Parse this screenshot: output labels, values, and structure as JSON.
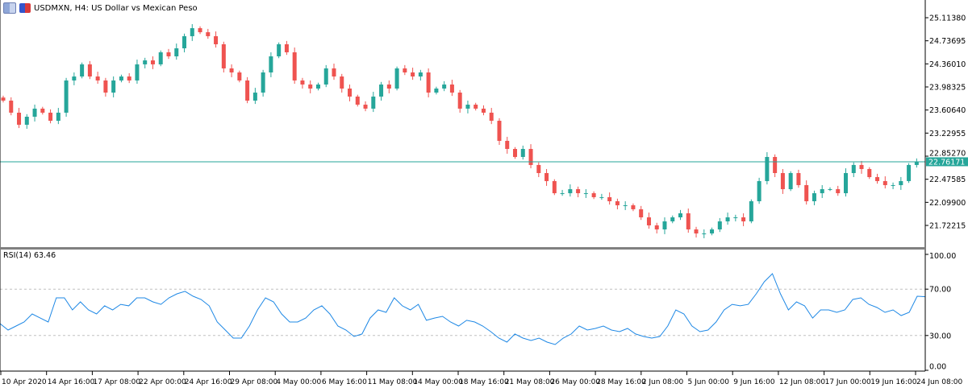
{
  "header": {
    "title": "USDMXN, H4:  US Dollar vs Mexican Peso",
    "icons": [
      "chart-window-icon",
      "chart-type-icon"
    ]
  },
  "colors": {
    "bull": "#26a69a",
    "bear": "#ef5350",
    "price_line": "#26a69a",
    "rsi_line": "#1e88e5",
    "level_line": "#c0c0c0"
  },
  "chart_data": [
    {
      "type": "candlestick",
      "symbol": "USDMXN",
      "timeframe": "H4",
      "ylim": [
        21.6,
        25.28
      ],
      "y_ticks": [
        "25.11380",
        "24.73695",
        "24.36010",
        "23.98325",
        "23.60640",
        "23.22955",
        "22.85270",
        "22.47585",
        "22.09900",
        "21.72215"
      ],
      "current_price": "22.76171",
      "x_ticks": [
        "10 Apr 2020",
        "14 Apr 16:00",
        "17 Apr 08:00",
        "22 Apr 00:00",
        "24 Apr 16:00",
        "29 Apr 08:00",
        "4 May 00:00",
        "6 May 16:00",
        "11 May 08:00",
        "14 May 00:00",
        "18 May 16:00",
        "21 May 08:00",
        "26 May 00:00",
        "28 May 16:00",
        "2 Jun 08:00",
        "5 Jun 00:00",
        "9 Jun 16:00",
        "12 Jun 08:00",
        "17 Jun 00:00",
        "19 Jun 16:00",
        "24 Jun 08:00"
      ],
      "closes": [
        23.76,
        23.563,
        23.366,
        23.497,
        23.629,
        23.563,
        23.431,
        23.563,
        24.089,
        24.154,
        24.352,
        24.154,
        24.089,
        23.891,
        24.089,
        24.154,
        24.089,
        24.352,
        24.417,
        24.352,
        24.549,
        24.483,
        24.614,
        24.812,
        24.943,
        24.877,
        24.812,
        24.68,
        24.286,
        24.22,
        24.089,
        23.76,
        23.891,
        24.22,
        24.483,
        24.68,
        24.549,
        24.089,
        24.023,
        23.957,
        24.023,
        24.286,
        24.154,
        23.957,
        23.826,
        23.694,
        23.629,
        23.826,
        24.023,
        23.957,
        24.286,
        24.22,
        24.154,
        24.22,
        23.891,
        23.957,
        24.023,
        23.891,
        23.629,
        23.694,
        23.629,
        23.563,
        23.431,
        23.103,
        22.971,
        22.84,
        22.971,
        22.709,
        22.577,
        22.446,
        22.248,
        22.248,
        22.314,
        22.248,
        22.248,
        22.183,
        22.183,
        22.117,
        22.051,
        22.051,
        21.986,
        21.854,
        21.723,
        21.657,
        21.788,
        21.854,
        21.92,
        21.657,
        21.591,
        21.591,
        21.657,
        21.788,
        21.854,
        21.854,
        21.788,
        22.117,
        22.446,
        22.84,
        22.577,
        22.314,
        22.577,
        22.38,
        22.117,
        22.248,
        22.314,
        22.314,
        22.248,
        22.577,
        22.709,
        22.643,
        22.511,
        22.446,
        22.38,
        22.38,
        22.446,
        22.709,
        22.762
      ]
    },
    {
      "type": "line",
      "indicator": "RSI(14)",
      "label": "RSI(14) 63.46",
      "ylim": [
        0,
        100
      ],
      "y_ticks": [
        "100.00",
        "70.00",
        "30.00",
        "0.00"
      ],
      "levels": [
        70,
        30
      ],
      "values": [
        40.3,
        34.7,
        38.2,
        41.7,
        48.6,
        45.1,
        41.7,
        62.5,
        62.5,
        52.1,
        59.0,
        52.1,
        48.6,
        55.6,
        52.1,
        56.9,
        55.6,
        62.5,
        62.5,
        59.0,
        56.9,
        62.5,
        66.0,
        68.1,
        63.9,
        61.1,
        55.6,
        41.7,
        34.7,
        27.8,
        27.8,
        38.2,
        52.1,
        62.5,
        59.0,
        48.6,
        41.7,
        41.7,
        45.1,
        52.1,
        55.6,
        48.6,
        38.2,
        34.7,
        29.2,
        31.3,
        45.1,
        52.1,
        50.0,
        62.5,
        55.6,
        52.1,
        56.9,
        43.1,
        45.1,
        46.5,
        41.7,
        38.2,
        43.1,
        41.7,
        38.2,
        33.3,
        27.8,
        24.3,
        31.3,
        27.8,
        25.7,
        27.8,
        24.3,
        22.2,
        27.8,
        31.3,
        38.2,
        34.7,
        36.1,
        38.2,
        34.7,
        33.3,
        36.1,
        31.3,
        29.2,
        27.8,
        29.2,
        38.2,
        52.1,
        48.6,
        38.2,
        33.3,
        34.7,
        41.7,
        52.1,
        56.9,
        55.6,
        56.9,
        66.0,
        76.4,
        83.3,
        66.0,
        52.1,
        59.0,
        55.6,
        45.1,
        52.1,
        52.1,
        50.0,
        52.1,
        61.1,
        62.5,
        56.9,
        54.2,
        50.0,
        52.1,
        47.2,
        50.0,
        63.9,
        63.46
      ]
    }
  ]
}
